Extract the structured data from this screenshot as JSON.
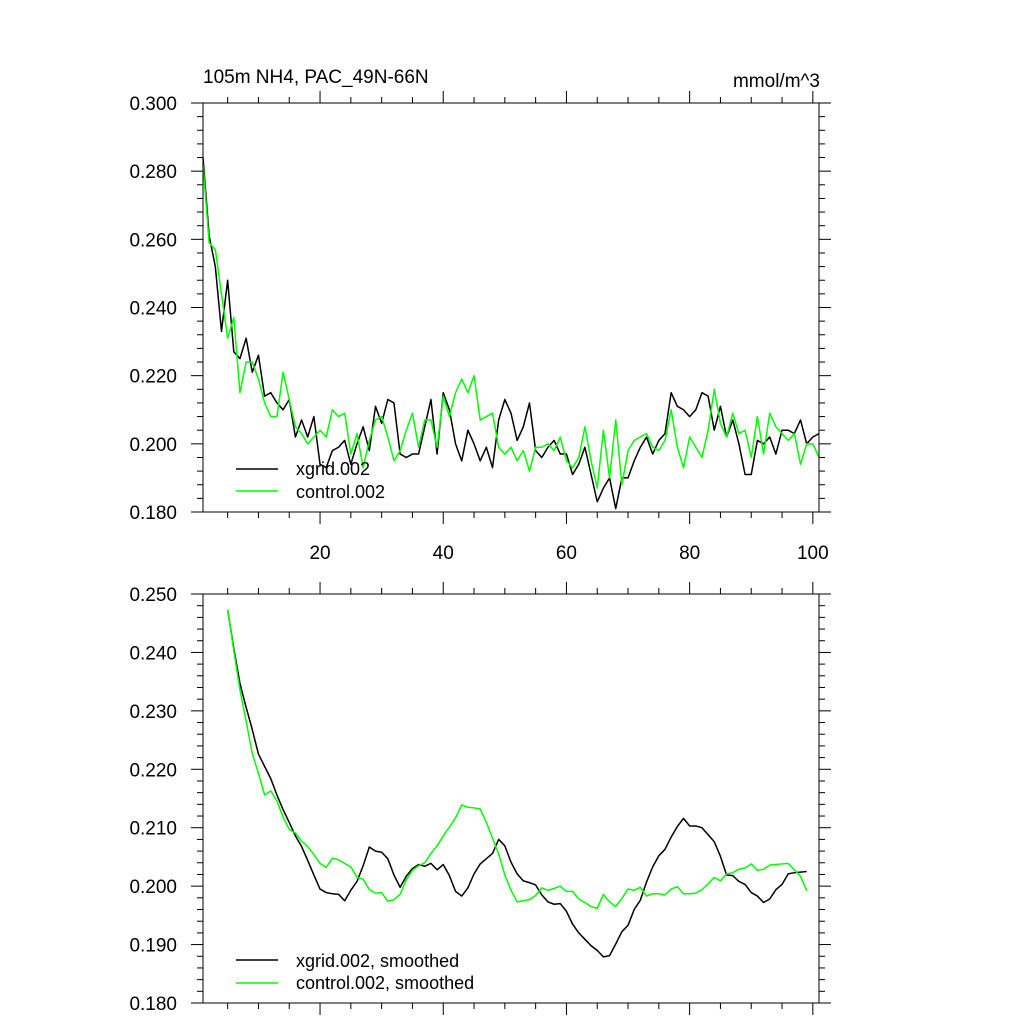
{
  "chart_data": [
    {
      "type": "line",
      "title": "105m NH4, PAC_49N-66N",
      "units": "mmol/m^3",
      "xlim": [
        1,
        101
      ],
      "ylim": [
        0.18,
        0.3
      ],
      "xticks": [
        20,
        40,
        60,
        80,
        100
      ],
      "xtick_labels": [
        "20",
        "40",
        "60",
        "80",
        "100"
      ],
      "yticks": [
        0.18,
        0.2,
        0.22,
        0.24,
        0.26,
        0.28,
        0.3
      ],
      "ytick_labels": [
        "0.180",
        "0.200",
        "0.220",
        "0.240",
        "0.260",
        "0.280",
        "0.300"
      ],
      "legend_position": "bottom-left",
      "series": [
        {
          "name": "xgrid.002",
          "color": "#000000",
          "x_start": 1,
          "values": [
            0.284,
            0.261,
            0.252,
            0.233,
            0.248,
            0.227,
            0.225,
            0.231,
            0.221,
            0.226,
            0.214,
            0.215,
            0.212,
            0.21,
            0.213,
            0.202,
            0.207,
            0.202,
            0.208,
            0.194,
            0.193,
            0.198,
            0.199,
            0.201,
            0.194,
            0.2,
            0.205,
            0.198,
            0.211,
            0.206,
            0.213,
            0.212,
            0.197,
            0.196,
            0.197,
            0.197,
            0.205,
            0.213,
            0.197,
            0.215,
            0.21,
            0.2,
            0.195,
            0.204,
            0.2,
            0.195,
            0.199,
            0.193,
            0.207,
            0.213,
            0.209,
            0.201,
            0.205,
            0.212,
            0.198,
            0.196,
            0.199,
            0.201,
            0.197,
            0.197,
            0.191,
            0.194,
            0.199,
            0.191,
            0.183,
            0.187,
            0.19,
            0.181,
            0.19,
            0.19,
            0.195,
            0.199,
            0.202,
            0.197,
            0.201,
            0.203,
            0.215,
            0.211,
            0.21,
            0.208,
            0.21,
            0.215,
            0.214,
            0.204,
            0.211,
            0.202,
            0.207,
            0.2,
            0.191,
            0.191,
            0.201,
            0.2,
            0.202,
            0.197,
            0.204,
            0.204,
            0.203,
            0.207,
            0.2,
            0.202,
            0.203
          ]
        },
        {
          "name": "control.002",
          "color": "#00ff00",
          "x_start": 1,
          "values": [
            0.282,
            0.259,
            0.257,
            0.244,
            0.231,
            0.237,
            0.215,
            0.224,
            0.224,
            0.219,
            0.212,
            0.208,
            0.208,
            0.221,
            0.213,
            0.205,
            0.203,
            0.2,
            0.202,
            0.204,
            0.202,
            0.21,
            0.208,
            0.209,
            0.197,
            0.203,
            0.193,
            0.201,
            0.207,
            0.208,
            0.202,
            0.195,
            0.198,
            0.204,
            0.209,
            0.199,
            0.207,
            0.207,
            0.199,
            0.214,
            0.208,
            0.215,
            0.219,
            0.215,
            0.22,
            0.207,
            0.208,
            0.209,
            0.199,
            0.197,
            0.199,
            0.195,
            0.198,
            0.192,
            0.199,
            0.199,
            0.2,
            0.198,
            0.202,
            0.195,
            0.193,
            0.196,
            0.205,
            0.195,
            0.187,
            0.204,
            0.19,
            0.207,
            0.188,
            0.198,
            0.201,
            0.202,
            0.203,
            0.199,
            0.198,
            0.201,
            0.21,
            0.199,
            0.193,
            0.202,
            0.199,
            0.196,
            0.204,
            0.216,
            0.206,
            0.202,
            0.209,
            0.203,
            0.204,
            0.196,
            0.208,
            0.197,
            0.209,
            0.205,
            0.203,
            0.201,
            0.203,
            0.194,
            0.2,
            0.2,
            0.196
          ]
        }
      ]
    },
    {
      "type": "line",
      "title": "",
      "xlim": [
        1,
        101
      ],
      "ylim": [
        0.18,
        0.25
      ],
      "xticks": [
        20,
        40,
        60,
        80,
        100
      ],
      "xtick_labels": [],
      "yticks": [
        0.18,
        0.19,
        0.2,
        0.21,
        0.22,
        0.23,
        0.24,
        0.25
      ],
      "ytick_labels": [
        "0.180",
        "0.190",
        "0.200",
        "0.210",
        "0.220",
        "0.230",
        "0.240",
        "0.250"
      ],
      "legend_position": "bottom-left",
      "series": [
        {
          "name": "xgrid.002, smoothed",
          "color": "#000000",
          "x_start": 5,
          "values": [
            0.2473,
            0.2407,
            0.2347,
            0.2306,
            0.2268,
            0.2226,
            0.2205,
            0.2184,
            0.2156,
            0.2131,
            0.2109,
            0.2086,
            0.2068,
            0.2044,
            0.2019,
            0.1995,
            0.1989,
            0.1987,
            0.1986,
            0.1975,
            0.1993,
            0.2008,
            0.2035,
            0.2067,
            0.206,
            0.2058,
            0.2047,
            0.2019,
            0.1998,
            0.2017,
            0.203,
            0.2037,
            0.2034,
            0.2039,
            0.2028,
            0.2037,
            0.2018,
            0.1991,
            0.1983,
            0.1997,
            0.2021,
            0.2038,
            0.2047,
            0.2056,
            0.208,
            0.2069,
            0.2041,
            0.2021,
            0.2009,
            0.2006,
            0.2002,
            0.1985,
            0.1973,
            0.1969,
            0.197,
            0.1957,
            0.1935,
            0.192,
            0.1909,
            0.1898,
            0.189,
            0.1879,
            0.1881,
            0.1901,
            0.1922,
            0.1933,
            0.196,
            0.1976,
            0.2007,
            0.2033,
            0.2052,
            0.2063,
            0.2084,
            0.2102,
            0.2116,
            0.2103,
            0.2103,
            0.21,
            0.2088,
            0.2076,
            0.2051,
            0.2019,
            0.2018,
            0.2008,
            0.2003,
            0.1989,
            0.1983,
            0.1972,
            0.1978,
            0.1994,
            0.2003,
            0.2021,
            0.2023,
            0.2024,
            0.2025
          ]
        },
        {
          "name": "control.002, smoothed",
          "color": "#00ff00",
          "x_start": 5,
          "values": [
            0.2473,
            0.2403,
            0.2336,
            0.2282,
            0.2227,
            0.2193,
            0.2156,
            0.2163,
            0.2146,
            0.2118,
            0.2097,
            0.2091,
            0.2077,
            0.2068,
            0.2054,
            0.2039,
            0.2032,
            0.2048,
            0.2045,
            0.2039,
            0.2033,
            0.2015,
            0.2012,
            0.1994,
            0.1988,
            0.1989,
            0.1974,
            0.1977,
            0.1986,
            0.2011,
            0.2027,
            0.2035,
            0.204,
            0.2056,
            0.2069,
            0.2086,
            0.2101,
            0.2117,
            0.2139,
            0.2135,
            0.2134,
            0.2132,
            0.2109,
            0.2082,
            0.2055,
            0.2019,
            0.1993,
            0.1973,
            0.1975,
            0.1977,
            0.1984,
            0.1997,
            0.1993,
            0.1996,
            0.2,
            0.1991,
            0.1991,
            0.1978,
            0.1972,
            0.1965,
            0.1962,
            0.1986,
            0.1973,
            0.1965,
            0.1979,
            0.1995,
            0.1993,
            0.1998,
            0.1983,
            0.1987,
            0.1987,
            0.1985,
            0.1995,
            0.1999,
            0.1987,
            0.1987,
            0.1988,
            0.1994,
            0.2004,
            0.2015,
            0.2009,
            0.2021,
            0.2023,
            0.2029,
            0.2031,
            0.2038,
            0.2027,
            0.2029,
            0.2036,
            0.2037,
            0.2038,
            0.2039,
            0.2028,
            0.2017,
            0.1992
          ]
        }
      ]
    }
  ]
}
